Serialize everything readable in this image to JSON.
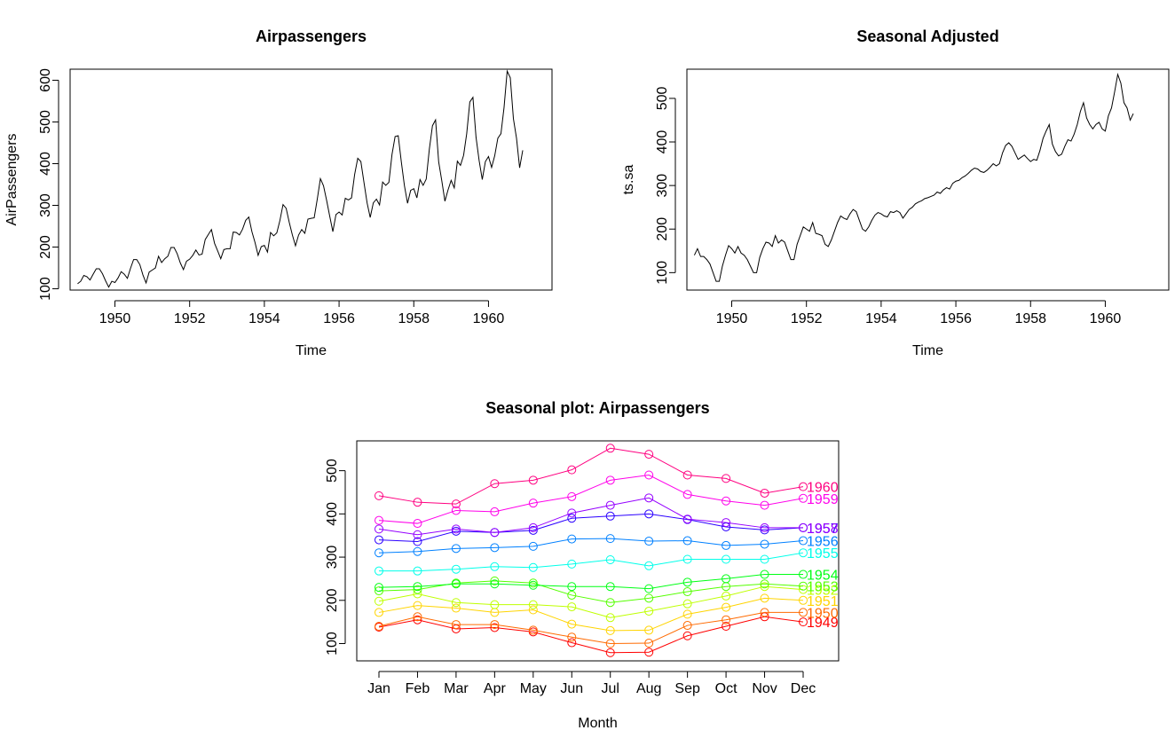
{
  "charts": [
    {
      "id": "airpassengers",
      "type": "line",
      "title": "Airpassengers",
      "xlabel": "Time",
      "ylabel": "AirPassengers",
      "xlim": [
        1948.8,
        1961.7
      ],
      "ylim": [
        96.9,
        626.5
      ],
      "x_ticks": [
        1950,
        1952,
        1954,
        1956,
        1958,
        1960
      ],
      "y_ticks": [
        100,
        200,
        300,
        400,
        500,
        600
      ],
      "x_start": 1949,
      "x_step": 0.0833333,
      "values": [
        112,
        118,
        132,
        129,
        121,
        135,
        148,
        148,
        136,
        119,
        104,
        118,
        115,
        126,
        141,
        135,
        125,
        149,
        170,
        170,
        158,
        133,
        114,
        140,
        145,
        150,
        178,
        163,
        172,
        178,
        199,
        199,
        184,
        162,
        146,
        166,
        171,
        180,
        193,
        181,
        183,
        218,
        230,
        242,
        209,
        191,
        172,
        194,
        196,
        196,
        236,
        235,
        229,
        243,
        264,
        272,
        237,
        211,
        180,
        201,
        204,
        188,
        235,
        227,
        234,
        264,
        302,
        293,
        259,
        229,
        203,
        229,
        242,
        233,
        267,
        269,
        270,
        315,
        364,
        347,
        312,
        274,
        237,
        278,
        284,
        277,
        317,
        313,
        318,
        374,
        413,
        405,
        355,
        306,
        271,
        306,
        315,
        301,
        356,
        348,
        355,
        422,
        465,
        467,
        404,
        347,
        305,
        336,
        340,
        318,
        362,
        348,
        363,
        435,
        491,
        505,
        404,
        359,
        310,
        337,
        360,
        342,
        406,
        396,
        420,
        472,
        548,
        559,
        463,
        407,
        362,
        405,
        417,
        391,
        419,
        461,
        472,
        535,
        622,
        606,
        508,
        461,
        390,
        432
      ]
    },
    {
      "id": "seasonal-adjusted",
      "type": "line",
      "title": "Seasonal Adjusted",
      "xlabel": "Time",
      "ylabel": "ts.sa",
      "xlim": [
        1948.8,
        1961.7
      ],
      "ylim": [
        60,
        567
      ],
      "x_ticks": [
        1950,
        1952,
        1954,
        1956,
        1958,
        1960
      ],
      "y_ticks": [
        100,
        200,
        300,
        400,
        500
      ],
      "x_start": 1949,
      "x_step": 0.0833333,
      "values": [
        140,
        155,
        137,
        137,
        130,
        120,
        100,
        80,
        80,
        115,
        140,
        162,
        155,
        145,
        160,
        145,
        140,
        130,
        115,
        100,
        100,
        135,
        155,
        170,
        168,
        160,
        185,
        168,
        175,
        170,
        150,
        130,
        130,
        165,
        185,
        205,
        200,
        195,
        215,
        190,
        188,
        185,
        165,
        160,
        175,
        195,
        215,
        230,
        225,
        222,
        235,
        245,
        240,
        220,
        200,
        195,
        205,
        220,
        232,
        238,
        235,
        230,
        228,
        240,
        238,
        242,
        238,
        225,
        235,
        245,
        250,
        258,
        262,
        265,
        270,
        272,
        275,
        278,
        285,
        282,
        290,
        295,
        292,
        305,
        310,
        312,
        318,
        322,
        328,
        335,
        340,
        338,
        332,
        330,
        335,
        342,
        350,
        345,
        350,
        375,
        392,
        398,
        390,
        375,
        360,
        365,
        370,
        362,
        355,
        360,
        358,
        380,
        408,
        425,
        440,
        395,
        378,
        368,
        372,
        390,
        405,
        402,
        418,
        440,
        470,
        490,
        455,
        440,
        430,
        440,
        445,
        430,
        425,
        460,
        478,
        515,
        555,
        535,
        490,
        478,
        450,
        465
      ]
    },
    {
      "id": "seasonal-plot",
      "type": "line",
      "title": "Seasonal plot: Airpassengers",
      "xlabel": "Month",
      "ylabel": "",
      "ylim": [
        60,
        569
      ],
      "y_ticks": [
        100,
        200,
        300,
        400,
        500
      ],
      "categories": [
        "Jan",
        "Feb",
        "Mar",
        "Apr",
        "May",
        "Jun",
        "Jul",
        "Aug",
        "Sep",
        "Oct",
        "Nov",
        "Dec"
      ],
      "series": [
        {
          "name": "1949",
          "color": "#FF0000",
          "values": [
            138,
            155,
            134,
            137,
            127,
            102,
            79,
            80,
            118,
            140,
            162,
            150
          ]
        },
        {
          "name": "1950",
          "color": "#FF6A00",
          "values": [
            140,
            162,
            144,
            144,
            131,
            115,
            100,
            101,
            142,
            155,
            172,
            172
          ]
        },
        {
          "name": "1951",
          "color": "#FFD400",
          "values": [
            172,
            188,
            182,
            172,
            178,
            145,
            130,
            131,
            168,
            184,
            205,
            200
          ]
        },
        {
          "name": "1952",
          "color": "#BFFF00",
          "values": [
            198,
            215,
            195,
            190,
            190,
            185,
            160,
            175,
            192,
            210,
            232,
            225
          ]
        },
        {
          "name": "1953",
          "color": "#55FF00",
          "values": [
            222,
            225,
            240,
            245,
            240,
            212,
            195,
            205,
            220,
            232,
            238,
            233
          ]
        },
        {
          "name": "1954",
          "color": "#00FF15",
          "values": [
            230,
            232,
            238,
            238,
            235,
            232,
            232,
            227,
            242,
            250,
            260,
            260
          ]
        },
        {
          "name": "1955",
          "color": "#00FFEA",
          "values": [
            268,
            268,
            272,
            278,
            276,
            284,
            294,
            280,
            295,
            295,
            295,
            310
          ]
        },
        {
          "name": "1956",
          "color": "#0080FF",
          "values": [
            310,
            313,
            320,
            322,
            325,
            342,
            343,
            337,
            338,
            327,
            330,
            338
          ]
        },
        {
          "name": "1957",
          "color": "#2B00FF",
          "values": [
            340,
            336,
            360,
            357,
            362,
            390,
            395,
            400,
            387,
            370,
            363,
            368
          ]
        },
        {
          "name": "1958",
          "color": "#9500FF",
          "values": [
            365,
            352,
            365,
            357,
            368,
            402,
            420,
            437,
            388,
            380,
            368,
            368
          ]
        },
        {
          "name": "1959",
          "color": "#FF00EA",
          "values": [
            385,
            378,
            408,
            405,
            425,
            440,
            478,
            490,
            445,
            430,
            420,
            436
          ]
        },
        {
          "name": "1960",
          "color": "#FF0080",
          "values": [
            442,
            427,
            423,
            470,
            478,
            502,
            552,
            538,
            490,
            482,
            448,
            463
          ]
        }
      ]
    }
  ]
}
